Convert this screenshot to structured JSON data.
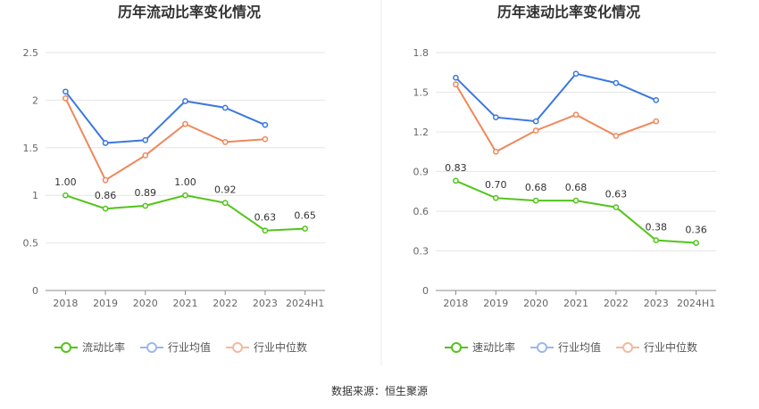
{
  "source_label": "数据来源：恒生聚源",
  "chart_data": [
    {
      "type": "line",
      "title": "历年流动比率变化情况",
      "categories": [
        "2018",
        "2019",
        "2020",
        "2021",
        "2022",
        "2023",
        "2024H1"
      ],
      "yticks": [
        "0",
        "0.5",
        "1",
        "1.5",
        "2",
        "2.5"
      ],
      "ylim": [
        0,
        2.5
      ],
      "legend_position": "bottom",
      "grid": true,
      "series": [
        {
          "name": "流动比率",
          "color": "#52c41a",
          "values": [
            1.0,
            0.86,
            0.89,
            1.0,
            0.92,
            0.63,
            0.65
          ],
          "labels": [
            "1.00",
            "0.86",
            "0.89",
            "1.00",
            "0.92",
            "0.63",
            "0.65"
          ]
        },
        {
          "name": "行业均值",
          "color": "#3a78e0",
          "values": [
            2.09,
            1.55,
            1.58,
            1.99,
            1.92,
            1.74,
            null
          ]
        },
        {
          "name": "行业中位数",
          "color": "#f0875a",
          "values": [
            2.02,
            1.16,
            1.42,
            1.75,
            1.56,
            1.59,
            null
          ]
        }
      ]
    },
    {
      "type": "line",
      "title": "历年速动比率变化情况",
      "categories": [
        "2018",
        "2019",
        "2020",
        "2021",
        "2022",
        "2023",
        "2024H1"
      ],
      "yticks": [
        "0",
        "0.3",
        "0.6",
        "0.9",
        "1.2",
        "1.5",
        "1.8"
      ],
      "ylim": [
        0,
        1.8
      ],
      "legend_position": "bottom",
      "grid": true,
      "series": [
        {
          "name": "速动比率",
          "color": "#52c41a",
          "values": [
            0.83,
            0.7,
            0.68,
            0.68,
            0.63,
            0.38,
            0.36
          ],
          "labels": [
            "0.83",
            "0.70",
            "0.68",
            "0.68",
            "0.63",
            "0.38",
            "0.36"
          ]
        },
        {
          "name": "行业均值",
          "color": "#3a78e0",
          "values": [
            1.61,
            1.31,
            1.28,
            1.64,
            1.57,
            1.44,
            null
          ]
        },
        {
          "name": "行业中位数",
          "color": "#f0875a",
          "values": [
            1.56,
            1.05,
            1.21,
            1.33,
            1.17,
            1.28,
            null
          ]
        }
      ]
    }
  ]
}
